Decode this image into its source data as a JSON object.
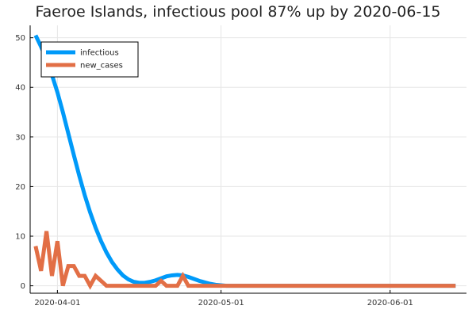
{
  "chart_data": {
    "type": "line",
    "title": "Faeroe Islands, infectious pool 87% up by 2020-06-15",
    "xlabel": "",
    "ylabel": "",
    "xlim": [
      "2020-03-27",
      "2020-06-15"
    ],
    "ylim": [
      -1.5,
      52.5
    ],
    "grid": true,
    "legend_position": "top-left",
    "x_ticks": [
      "2020-04-01",
      "2020-05-01",
      "2020-06-01"
    ],
    "y_ticks": [
      0,
      10,
      20,
      30,
      40,
      50
    ],
    "series": [
      {
        "name": "infectious",
        "color": "#009af9",
        "points": [
          [
            "2020-03-28",
            50.5
          ],
          [
            "2020-03-29",
            48.2
          ],
          [
            "2020-03-30",
            45.6
          ],
          [
            "2020-03-31",
            42.5
          ],
          [
            "2020-04-01",
            39.0
          ],
          [
            "2020-04-02",
            35.0
          ],
          [
            "2020-04-03",
            30.7
          ],
          [
            "2020-04-04",
            26.4
          ],
          [
            "2020-04-05",
            22.2
          ],
          [
            "2020-04-06",
            18.3
          ],
          [
            "2020-04-07",
            14.8
          ],
          [
            "2020-04-08",
            11.7
          ],
          [
            "2020-04-09",
            9.0
          ],
          [
            "2020-04-10",
            6.7
          ],
          [
            "2020-04-11",
            4.8
          ],
          [
            "2020-04-12",
            3.3
          ],
          [
            "2020-04-13",
            2.1
          ],
          [
            "2020-04-14",
            1.3
          ],
          [
            "2020-04-15",
            0.8
          ],
          [
            "2020-04-16",
            0.6
          ],
          [
            "2020-04-17",
            0.6
          ],
          [
            "2020-04-18",
            0.8
          ],
          [
            "2020-04-19",
            1.1
          ],
          [
            "2020-04-20",
            1.5
          ],
          [
            "2020-04-21",
            1.9
          ],
          [
            "2020-04-22",
            2.1
          ],
          [
            "2020-04-23",
            2.2
          ],
          [
            "2020-04-24",
            2.1
          ],
          [
            "2020-04-25",
            1.8
          ],
          [
            "2020-04-26",
            1.4
          ],
          [
            "2020-04-27",
            1.0
          ],
          [
            "2020-04-28",
            0.7
          ],
          [
            "2020-04-29",
            0.4
          ],
          [
            "2020-04-30",
            0.2
          ],
          [
            "2020-05-01",
            0.1
          ],
          [
            "2020-05-02",
            0.0
          ],
          [
            "2020-05-10",
            0.0
          ],
          [
            "2020-05-20",
            0.0
          ],
          [
            "2020-06-01",
            0.0
          ],
          [
            "2020-06-13",
            0.0
          ]
        ]
      },
      {
        "name": "new_cases",
        "color": "#e26f46",
        "points": [
          [
            "2020-03-28",
            8
          ],
          [
            "2020-03-29",
            3
          ],
          [
            "2020-03-30",
            11
          ],
          [
            "2020-03-31",
            2
          ],
          [
            "2020-04-01",
            9
          ],
          [
            "2020-04-02",
            0
          ],
          [
            "2020-04-03",
            4
          ],
          [
            "2020-04-04",
            4
          ],
          [
            "2020-04-05",
            2
          ],
          [
            "2020-04-06",
            2
          ],
          [
            "2020-04-07",
            0
          ],
          [
            "2020-04-08",
            2
          ],
          [
            "2020-04-09",
            1
          ],
          [
            "2020-04-10",
            0
          ],
          [
            "2020-04-11",
            0
          ],
          [
            "2020-04-12",
            0
          ],
          [
            "2020-04-13",
            0
          ],
          [
            "2020-04-14",
            0
          ],
          [
            "2020-04-15",
            0
          ],
          [
            "2020-04-16",
            0
          ],
          [
            "2020-04-17",
            0
          ],
          [
            "2020-04-18",
            0
          ],
          [
            "2020-04-19",
            0
          ],
          [
            "2020-04-20",
            1
          ],
          [
            "2020-04-21",
            0
          ],
          [
            "2020-04-22",
            0
          ],
          [
            "2020-04-23",
            0
          ],
          [
            "2020-04-24",
            2
          ],
          [
            "2020-04-25",
            0
          ],
          [
            "2020-04-26",
            0
          ],
          [
            "2020-04-27",
            0
          ],
          [
            "2020-04-28",
            0
          ],
          [
            "2020-04-29",
            0
          ],
          [
            "2020-04-30",
            0
          ],
          [
            "2020-05-01",
            0
          ],
          [
            "2020-05-02",
            0
          ],
          [
            "2020-05-10",
            0
          ],
          [
            "2020-05-20",
            0
          ],
          [
            "2020-06-01",
            0
          ],
          [
            "2020-06-13",
            0
          ]
        ]
      }
    ]
  }
}
